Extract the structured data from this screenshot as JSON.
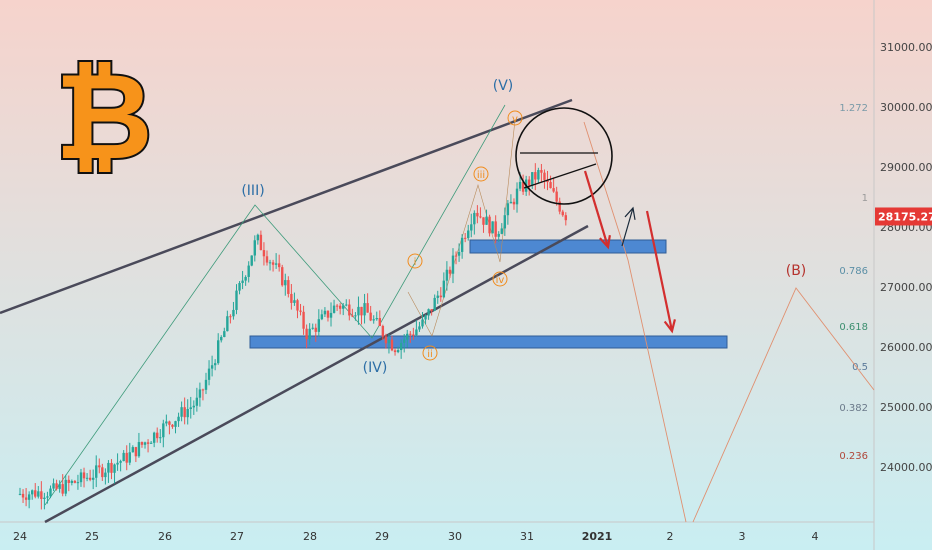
{
  "chart_data": {
    "type": "candlestick",
    "symbol_logo": "₿",
    "current_price": "28175.27",
    "y_axis_ticks": [
      24000,
      25000,
      26000,
      27000,
      28000,
      29000,
      30000,
      31000
    ],
    "y_axis_labels": [
      "24000.00",
      "25000.00",
      "26000.00",
      "27000.00",
      "28000.00",
      "29000.00",
      "30000.00",
      "31000.00"
    ],
    "x_axis_labels": [
      "24",
      "25",
      "26",
      "27",
      "28",
      "29",
      "30",
      "31",
      "2021",
      "2",
      "3",
      "4"
    ],
    "fib_levels": [
      {
        "label": "1.272",
        "price": 30000,
        "color": "#7a9aa8"
      },
      {
        "label": "1",
        "price": 28500,
        "color": "#9a9a9a"
      },
      {
        "label": "0.786",
        "price": 27280,
        "color": "#5b8fa6"
      },
      {
        "label": "0.618",
        "price": 26350,
        "color": "#3d8f6f"
      },
      {
        "label": "0.5",
        "price": 25680,
        "color": "#5b7a9a"
      },
      {
        "label": "0.382",
        "price": 25000,
        "color": "#6b7a8a"
      },
      {
        "label": "0.236",
        "price": 24200,
        "color": "#b0483a"
      }
    ],
    "wave_labels_blue": [
      "(III)",
      "(IV)",
      "(V)"
    ],
    "wave_labels_orange": [
      "i",
      "ii",
      "iii",
      "iv",
      "v"
    ],
    "wave_label_red": "(B)",
    "colors": {
      "up": "#26a69a",
      "down": "#ef5350",
      "channel": "#4a4a5a",
      "zone": "#3d7fd1",
      "arrow_red": "#d32f2f",
      "wave_blue": "#2c6ea6",
      "wave_orange": "#f08c1e",
      "wave_red": "#b5332e",
      "bg_top": "#f6d3cc",
      "bg_bottom": "#c9eef2"
    }
  }
}
